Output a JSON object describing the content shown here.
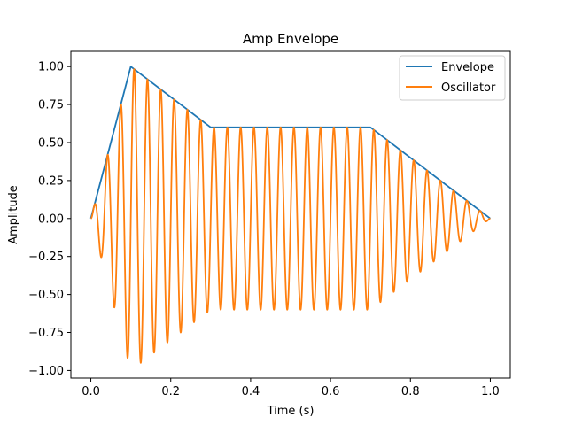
{
  "chart_data": {
    "type": "line",
    "title": "Amp Envelope",
    "xlabel": "Time (s)",
    "ylabel": "Amplitude",
    "xlim": [
      -0.05,
      1.05
    ],
    "ylim": [
      -1.05,
      1.1
    ],
    "xticks": [
      0.0,
      0.2,
      0.4,
      0.6,
      0.8,
      1.0
    ],
    "xtick_labels": [
      "0.0",
      "0.2",
      "0.4",
      "0.6",
      "0.8",
      "1.0"
    ],
    "yticks": [
      -1.0,
      -0.75,
      -0.5,
      -0.25,
      0.0,
      0.25,
      0.5,
      0.75,
      1.0
    ],
    "ytick_labels": [
      "−1.00",
      "−0.75",
      "−0.50",
      "−0.25",
      "0.00",
      "0.25",
      "0.50",
      "0.75",
      "1.00"
    ],
    "grid": false,
    "legend_position": "top-right",
    "series": [
      {
        "name": "Envelope",
        "color": "#1f77b4",
        "x": [
          0.0,
          0.1,
          0.3,
          0.7,
          1.0
        ],
        "y": [
          0.0,
          1.0,
          0.6,
          0.6,
          0.0
        ]
      },
      {
        "name": "Oscillator",
        "color": "#ff7f0e",
        "waveform": "sine",
        "frequency_hz": 30,
        "modulated_by": "Envelope"
      }
    ]
  }
}
